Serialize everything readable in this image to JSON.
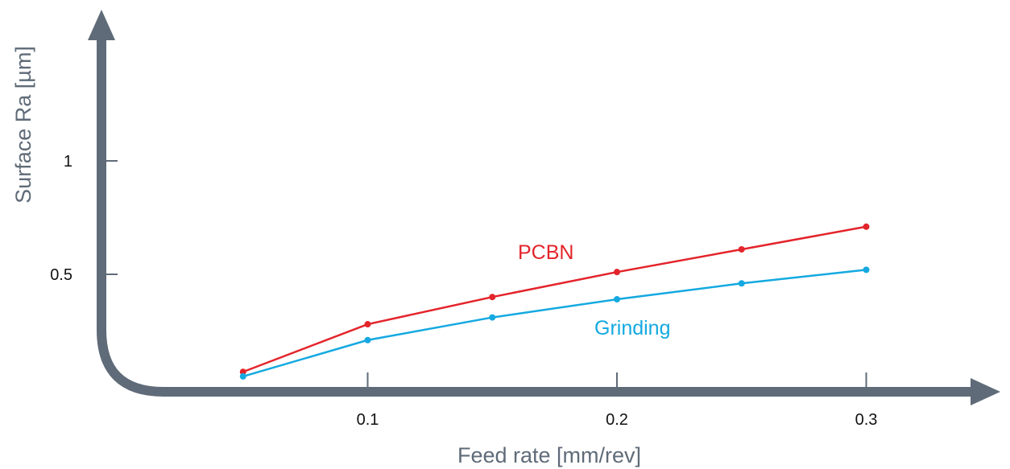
{
  "chart_data": {
    "type": "line",
    "title": "",
    "xlabel": "Feed rate [mm/rev]",
    "ylabel": "Surface Ra [µm]",
    "xlim": [
      0.0,
      0.35
    ],
    "ylim": [
      0.0,
      1.4
    ],
    "x_ticks": [
      {
        "value": 0.1,
        "label": "0.1"
      },
      {
        "value": 0.2,
        "label": "0.2"
      },
      {
        "value": 0.3,
        "label": "0.3"
      }
    ],
    "y_ticks": [
      {
        "value": 1.0,
        "label": "1"
      },
      {
        "value": 0.5,
        "label": "0.5"
      }
    ],
    "grid": false,
    "legend": "inline labels",
    "axis_color": "#5f6b78",
    "series": [
      {
        "name": "PCBN",
        "color": "#e3242b",
        "x": [
          0.05,
          0.1,
          0.15,
          0.2,
          0.25,
          0.3
        ],
        "values": [
          0.07,
          0.28,
          0.4,
          0.51,
          0.61,
          0.71
        ]
      },
      {
        "name": "Grinding",
        "color": "#14a9e0",
        "x": [
          0.05,
          0.1,
          0.15,
          0.2,
          0.25,
          0.3
        ],
        "values": [
          0.05,
          0.21,
          0.31,
          0.39,
          0.46,
          0.52
        ]
      }
    ]
  }
}
